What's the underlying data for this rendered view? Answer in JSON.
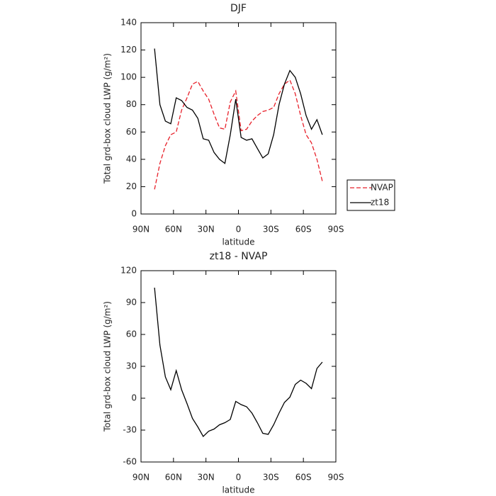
{
  "chart_data": [
    {
      "type": "line",
      "title": "DJF",
      "xlabel": "latitude",
      "ylabel": "Total grd-box cloud LWP (g/m²)",
      "x": [
        77.5,
        72.5,
        67.5,
        62.5,
        57.5,
        52.5,
        47.5,
        42.5,
        37.5,
        32.5,
        27.5,
        22.5,
        17.5,
        12.5,
        7.5,
        2.5,
        -2.5,
        -7.5,
        -12.5,
        -17.5,
        -22.5,
        -27.5,
        -32.5,
        -37.5,
        -42.5,
        -47.5,
        -52.5,
        -57.5,
        -62.5,
        -67.5,
        -72.5,
        -77.5
      ],
      "series": [
        {
          "name": "NVAP",
          "color": "#e8202a",
          "linestyle": "dashed",
          "values": [
            18,
            37,
            50,
            58,
            60,
            76,
            85,
            95,
            97,
            90,
            84,
            73,
            63,
            62,
            82,
            90,
            61,
            62,
            68,
            72,
            75,
            76,
            78,
            88,
            95,
            98,
            88,
            72,
            58,
            52,
            40,
            24
          ]
        },
        {
          "name": "zt18",
          "color": "#000000",
          "linestyle": "solid",
          "values": [
            121,
            80,
            68,
            66,
            85,
            83,
            78,
            76,
            70,
            55,
            54,
            45,
            40,
            37,
            58,
            84,
            56,
            54,
            55,
            48,
            41,
            44,
            58,
            80,
            95,
            105,
            100,
            88,
            72,
            62,
            69,
            58
          ]
        }
      ],
      "xlim": [
        90,
        -90
      ],
      "xticks": [
        {
          "value": 90,
          "label": "90N"
        },
        {
          "value": 60,
          "label": "60N"
        },
        {
          "value": 30,
          "label": "30N"
        },
        0,
        {
          "value": -30,
          "label": "30S"
        },
        {
          "value": -60,
          "label": "60S"
        },
        {
          "value": -90,
          "label": "90S"
        }
      ],
      "ylim": [
        0,
        140
      ],
      "yticks": [
        0,
        20,
        40,
        60,
        80,
        100,
        120,
        140
      ],
      "legend": "right"
    },
    {
      "type": "line",
      "title": "zt18 - NVAP",
      "xlabel": "latitude",
      "ylabel": "Total grd-box cloud LWP (g/m²)",
      "x": [
        77.5,
        72.5,
        67.5,
        62.5,
        57.5,
        52.5,
        47.5,
        42.5,
        37.5,
        32.5,
        27.5,
        22.5,
        17.5,
        12.5,
        7.5,
        2.5,
        -2.5,
        -7.5,
        -12.5,
        -17.5,
        -22.5,
        -27.5,
        -32.5,
        -37.5,
        -42.5,
        -47.5,
        -52.5,
        -57.5,
        -62.5,
        -67.5,
        -72.5,
        -77.5
      ],
      "color": "#000000",
      "values": [
        104,
        50,
        20,
        8,
        26,
        8,
        -5,
        -19,
        -27,
        -36,
        -31,
        -29,
        -25,
        -23,
        -20,
        -3,
        -6,
        -8,
        -14,
        -23,
        -33,
        -34,
        -25,
        -14,
        -4,
        1,
        13,
        17,
        14,
        9,
        28,
        34
      ],
      "xlim": [
        90,
        -90
      ],
      "xticks": [
        {
          "value": 90,
          "label": "90N"
        },
        {
          "value": 60,
          "label": "60N"
        },
        {
          "value": 30,
          "label": "30N"
        },
        0,
        {
          "value": -30,
          "label": "30S"
        },
        {
          "value": -60,
          "label": "60S"
        },
        {
          "value": -90,
          "label": "90S"
        }
      ],
      "ylim": [
        -60,
        120
      ],
      "yticks": [
        -60,
        -30,
        0,
        30,
        60,
        90,
        120
      ]
    }
  ]
}
